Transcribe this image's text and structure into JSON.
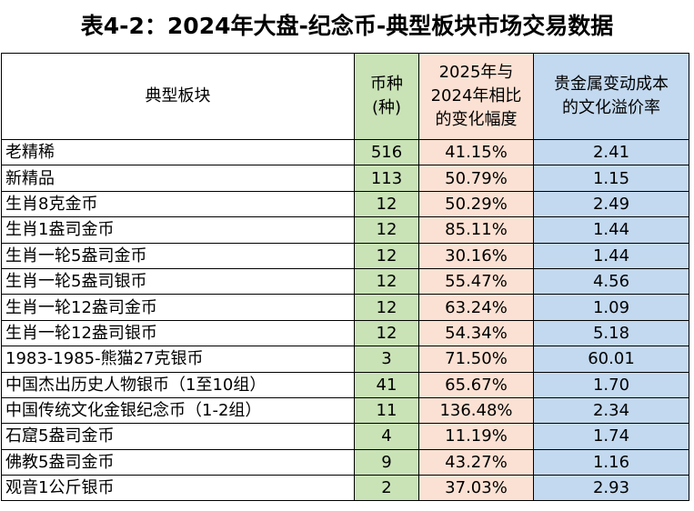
{
  "title": "表4-2：2024年大盘-纪念币-典型板块市场交易数据",
  "table": {
    "header": [
      [
        "典型板块"
      ],
      [
        "币种",
        "(种)"
      ],
      [
        "2025年与",
        "2024年相比",
        "的变化幅度"
      ],
      [
        "贵金属变动成本",
        "的文化溢价率"
      ]
    ],
    "rows": [
      [
        "老精稀",
        "516",
        "41.15%",
        "2.41"
      ],
      [
        "新精品",
        "113",
        "50.79%",
        "1.15"
      ],
      [
        "生肖8克金币",
        "12",
        "50.29%",
        "2.49"
      ],
      [
        "生肖1盎司金币",
        "12",
        "85.11%",
        "1.44"
      ],
      [
        "生肖一轮5盎司金币",
        "12",
        "30.16%",
        "1.44"
      ],
      [
        "生肖一轮5盎司银币",
        "12",
        "55.47%",
        "4.56"
      ],
      [
        "生肖一轮12盎司金币",
        "12",
        "63.24%",
        "1.09"
      ],
      [
        "生肖一轮12盎司银币",
        "12",
        "54.34%",
        "5.18"
      ],
      [
        "1983-1985-熊猫27克银币",
        "3",
        "71.50%",
        "60.01"
      ],
      [
        "中国杰出历史人物银币（1至10组）",
        "41",
        "65.67%",
        "1.70"
      ],
      [
        "中国传统文化金银纪念币（1-2组）",
        "11",
        "136.48%",
        "2.34"
      ],
      [
        "石窟5盎司金币",
        "4",
        "11.19%",
        "1.74"
      ],
      [
        "佛教5盎司金币",
        "9",
        "43.27%",
        "1.16"
      ],
      [
        "观音1公斤银币",
        "2",
        "37.03%",
        "2.93"
      ]
    ]
  }
}
